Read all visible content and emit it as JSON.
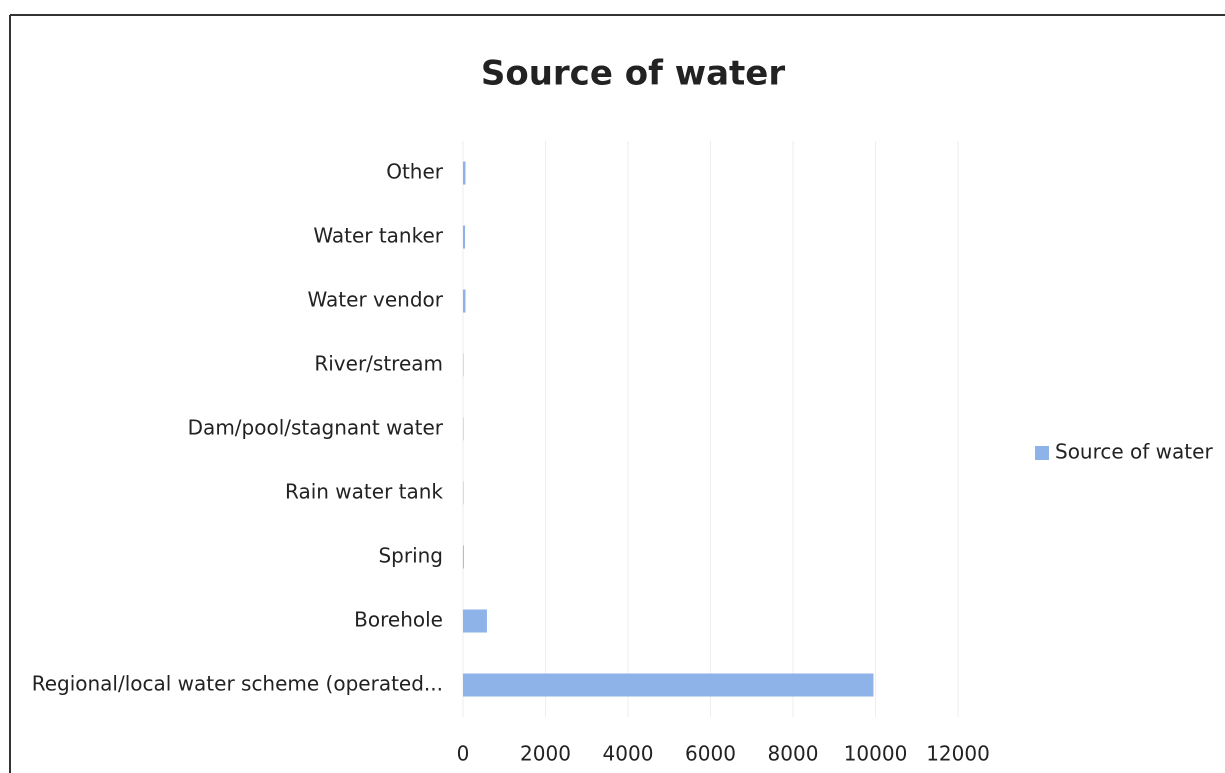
{
  "chart_data": {
    "type": "bar",
    "orientation": "horizontal",
    "title": "Source of water",
    "categories": [
      "Regional/local water scheme (operated...",
      "Borehole",
      "Spring",
      "Rain water tank",
      "Dam/pool/stagnant water",
      "River/stream",
      "Water vendor",
      "Water tanker",
      "Other"
    ],
    "series": [
      {
        "name": "Source of water",
        "color": "#8db3e8",
        "values": [
          9950,
          580,
          20,
          10,
          10,
          10,
          60,
          50,
          60
        ]
      }
    ],
    "xlim": [
      0,
      12000
    ],
    "xticks": [
      0,
      2000,
      4000,
      6000,
      8000,
      10000,
      12000
    ],
    "grid": true,
    "legend": "right"
  }
}
